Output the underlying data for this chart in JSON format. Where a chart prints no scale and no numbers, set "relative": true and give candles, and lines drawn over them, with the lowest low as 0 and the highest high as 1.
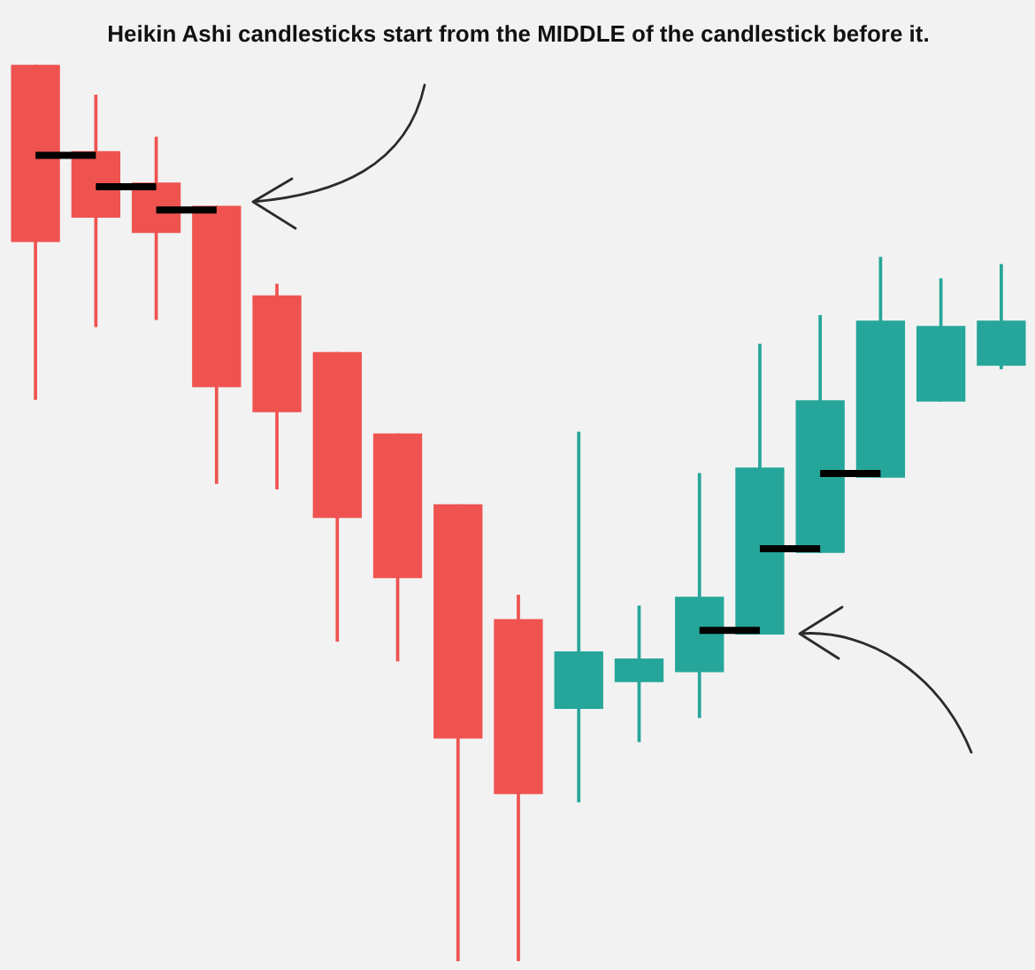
{
  "chart_data": {
    "type": "candlestick",
    "title": "Heikin Ashi candlesticks start from the MIDDLE of the candlestick before it.",
    "relative": true,
    "tick_labels": false,
    "categories": [
      null,
      null,
      null,
      null,
      null,
      null,
      null,
      null,
      null,
      null,
      null,
      null,
      null,
      null,
      null,
      null,
      null
    ],
    "ohlc": [
      [
        1.0,
        1.0,
        0.627,
        0.803
      ],
      [
        0.903,
        0.966,
        0.708,
        0.83
      ],
      [
        0.868,
        0.919,
        0.716,
        0.813
      ],
      [
        0.842,
        0.842,
        0.533,
        0.641
      ],
      [
        0.742,
        0.755,
        0.527,
        0.613
      ],
      [
        0.679,
        0.679,
        0.357,
        0.495
      ],
      [
        0.588,
        0.588,
        0.335,
        0.428
      ],
      [
        0.509,
        0.509,
        0.0,
        0.249
      ],
      [
        0.381,
        0.408,
        0.0,
        0.187
      ],
      [
        0.282,
        0.59,
        0.178,
        0.345
      ],
      [
        0.312,
        0.396,
        0.245,
        0.337
      ],
      [
        0.323,
        0.544,
        0.272,
        0.406
      ],
      [
        0.365,
        0.688,
        0.365,
        0.55
      ],
      [
        0.456,
        0.72,
        0.456,
        0.625
      ],
      [
        0.54,
        0.785,
        0.54,
        0.714
      ],
      [
        0.625,
        0.761,
        0.625,
        0.708
      ],
      [
        0.665,
        0.777,
        0.661,
        0.714
      ]
    ],
    "colors": [
      "#ef5350",
      "#ef5350",
      "#ef5350",
      "#ef5350",
      "#ef5350",
      "#ef5350",
      "#ef5350",
      "#ef5350",
      "#ef5350",
      "#26a69a",
      "#26a69a",
      "#26a69a",
      "#26a69a",
      "#26a69a",
      "#26a69a",
      "#26a69a",
      "#26a69a"
    ],
    "series": [
      {
        "type": "line",
        "color": "#000000",
        "values": [
          0.899,
          0.899,
          null,
          null,
          null,
          null,
          null,
          null,
          null,
          null,
          null,
          null,
          null,
          null,
          null,
          null,
          null
        ]
      },
      {
        "type": "line",
        "color": "#000000",
        "values": [
          null,
          0.864,
          0.864,
          null,
          null,
          null,
          null,
          null,
          null,
          null,
          null,
          null,
          null,
          null,
          null,
          null,
          null
        ]
      },
      {
        "type": "line",
        "color": "#000000",
        "values": [
          null,
          null,
          0.838,
          0.838,
          null,
          null,
          null,
          null,
          null,
          null,
          null,
          null,
          null,
          null,
          null,
          null,
          null
        ]
      },
      {
        "type": "line",
        "color": "#000000",
        "values": [
          null,
          null,
          null,
          null,
          null,
          null,
          null,
          null,
          null,
          null,
          null,
          0.369,
          0.369,
          null,
          null,
          null,
          null
        ]
      },
      {
        "type": "line",
        "color": "#000000",
        "values": [
          null,
          null,
          null,
          null,
          null,
          null,
          null,
          null,
          null,
          null,
          null,
          null,
          0.46,
          0.46,
          null,
          null,
          null
        ]
      },
      {
        "type": "line",
        "color": "#000000",
        "values": [
          null,
          null,
          null,
          null,
          null,
          null,
          null,
          null,
          null,
          null,
          null,
          null,
          null,
          0.544,
          0.544,
          null,
          null
        ]
      }
    ]
  }
}
